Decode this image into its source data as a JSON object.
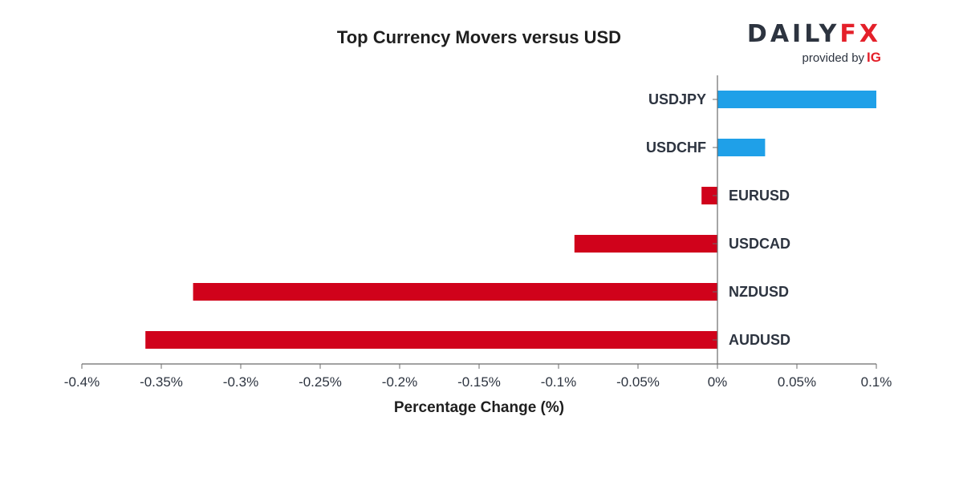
{
  "logo": {
    "brand_left": "DAILY",
    "brand_right": "FX",
    "provided_by": "provided by",
    "partner": "IG"
  },
  "colors": {
    "positive": "#1fa0e8",
    "negative": "#d0021b",
    "axis": "#6b6b6b",
    "text": "#2d3440"
  },
  "chart_data": {
    "type": "bar",
    "orientation": "horizontal",
    "title": "Top Currency Movers versus USD",
    "xlabel": "Percentage Change (%)",
    "ylabel": "",
    "xlim": [
      -0.4,
      0.1
    ],
    "categories": [
      "USDJPY",
      "USDCHF",
      "EURUSD",
      "USDCAD",
      "NZDUSD",
      "AUDUSD"
    ],
    "values": [
      0.1,
      0.03,
      -0.01,
      -0.09,
      -0.33,
      -0.36
    ],
    "x_ticks": [
      -0.4,
      -0.35,
      -0.3,
      -0.25,
      -0.2,
      -0.15,
      -0.1,
      -0.05,
      0,
      0.05,
      0.1
    ],
    "x_tick_labels": [
      "-0.4%",
      "-0.35%",
      "-0.3%",
      "-0.25%",
      "-0.2%",
      "-0.15%",
      "-0.1%",
      "-0.05%",
      "0%",
      "0.05%",
      "0.1%"
    ],
    "grid": false,
    "legend": "none"
  }
}
